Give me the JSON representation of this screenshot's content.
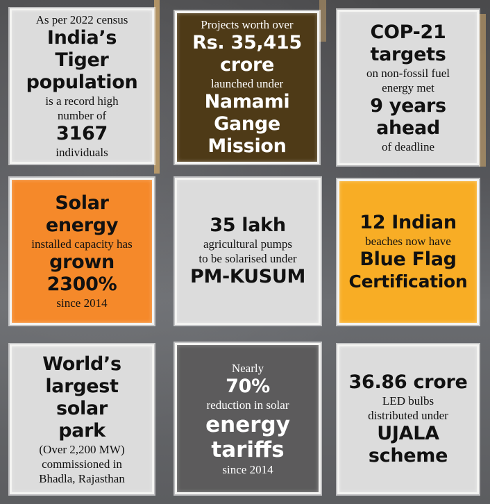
{
  "cards": [
    {
      "lines": [
        "As per 2022 census",
        "India’s Tiger",
        "population",
        "is a record high",
        "number of",
        "3167",
        "individuals"
      ]
    },
    {
      "lines": [
        "Projects worth over",
        "Rs. 35,415",
        "crore",
        "launched under",
        "Namami",
        "Gange Mission"
      ]
    },
    {
      "lines": [
        "COP-21",
        "targets",
        "on non-fossil fuel",
        "energy met",
        "9 years",
        "ahead",
        "of deadline"
      ]
    },
    {
      "lines": [
        "Solar",
        "energy",
        "installed capacity has",
        "grown",
        "2300%",
        "since 2014"
      ]
    },
    {
      "lines": [
        "35 lakh",
        "agricultural pumps",
        "to be solarised under",
        "PM-KUSUM"
      ]
    },
    {
      "lines": [
        "12 Indian",
        "beaches now have",
        "Blue Flag",
        "Certification"
      ]
    },
    {
      "lines": [
        "World’s",
        "largest solar",
        "park",
        "(Over 2,200 MW)",
        "commissioned in",
        "Bhadla, Rajasthan"
      ]
    },
    {
      "lines": [
        "Nearly",
        "70%",
        "reduction in solar",
        "energy",
        "tariffs",
        "since 2014"
      ]
    },
    {
      "lines": [
        "36.86 crore",
        "LED bulbs",
        "distributed under",
        "UJALA",
        "scheme"
      ]
    }
  ],
  "colors": {
    "grey": "#dcdcdc",
    "brown": "#4e3a17",
    "orange": "#f5892a",
    "yellow": "#f8ad25",
    "dark": "#5c5b5c"
  }
}
